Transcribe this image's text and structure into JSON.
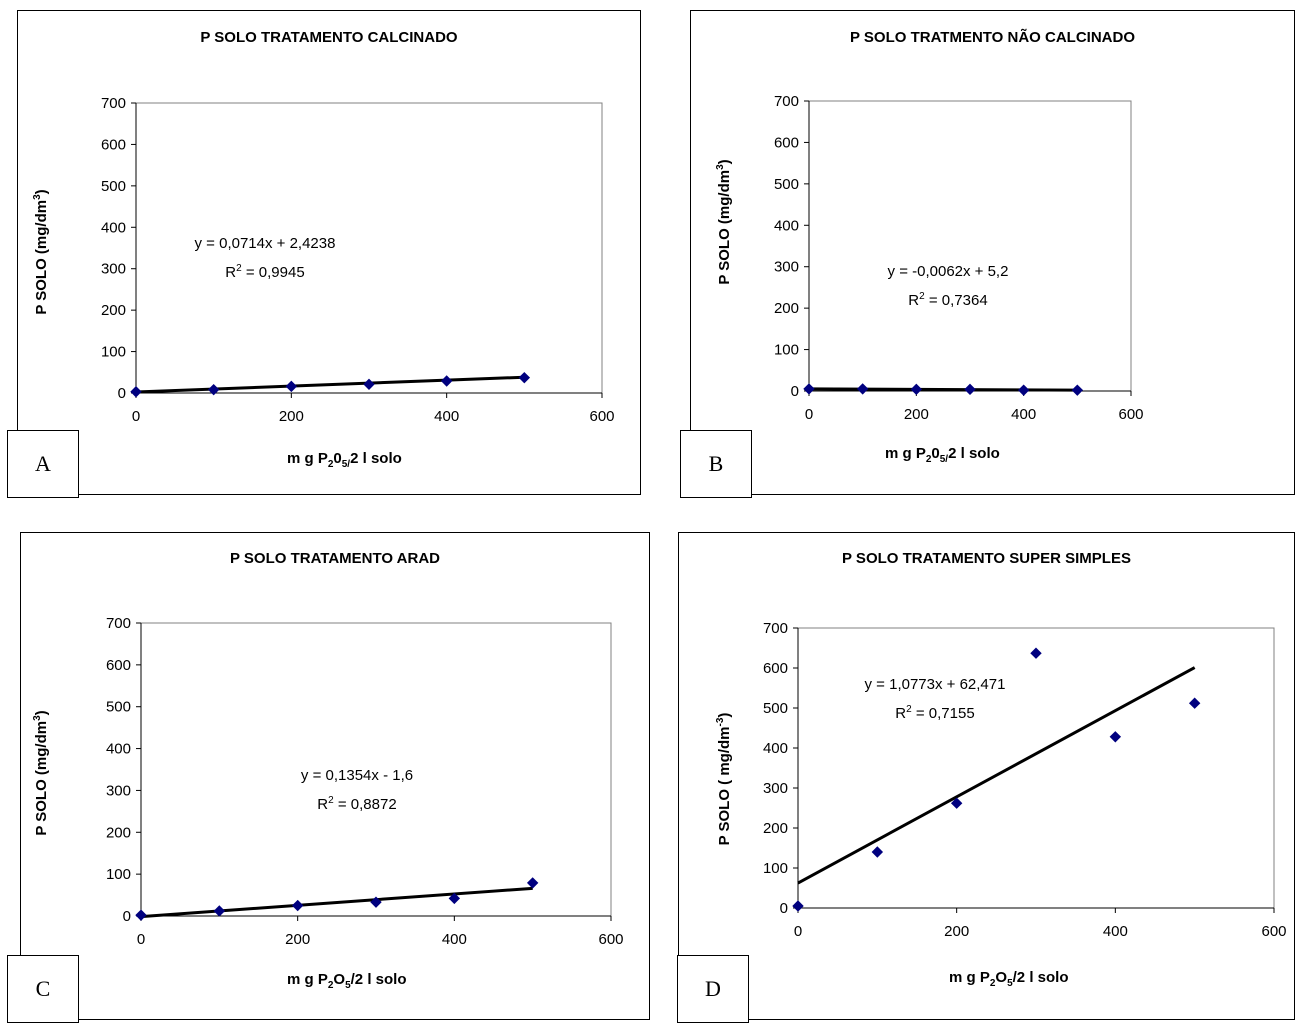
{
  "chart_data": [
    {
      "type": "scatter",
      "panel_letter": "A",
      "title": "P SOLO TRATAMENTO CALCINADO",
      "xlabel": "mg P2O5/2 l solo",
      "ylabel": "P SOLO (mg/dm3)",
      "xlim": [
        0,
        600
      ],
      "ylim": [
        0,
        700
      ],
      "xticks": [
        "0",
        "200",
        "400",
        "600"
      ],
      "yticks": [
        "0",
        "100",
        "200",
        "300",
        "400",
        "500",
        "600",
        "700"
      ],
      "x": [
        0,
        100,
        200,
        300,
        400,
        500
      ],
      "y": [
        3,
        8,
        16,
        21,
        29,
        37
      ],
      "trendline": {
        "slope": 0.0714,
        "intercept": 2.4238
      },
      "equation": "y = 0,0714x + 2,4238",
      "r2": "R2 = 0,9945",
      "marker_color": "#00007f",
      "line_color": "#000000"
    },
    {
      "type": "scatter",
      "panel_letter": "B",
      "title": "P SOLO TRATMENTO NÃO CALCINADO",
      "xlabel": "mg P2O5/2 l solo",
      "ylabel": "P SOLO (mg/dm3)",
      "xlim": [
        0,
        600
      ],
      "ylim": [
        0,
        700
      ],
      "xticks": [
        "0",
        "200",
        "400",
        "600"
      ],
      "yticks": [
        "0",
        "100",
        "200",
        "300",
        "400",
        "500",
        "600",
        "700"
      ],
      "x": [
        0,
        100,
        200,
        300,
        400,
        500
      ],
      "y": [
        5,
        5,
        4,
        4,
        2,
        2
      ],
      "trendline": {
        "slope": -0.0062,
        "intercept": 5.2
      },
      "equation": "y = -0,0062x + 5,2",
      "r2": "R2 = 0,7364",
      "marker_color": "#00007f",
      "line_color": "#000000"
    },
    {
      "type": "scatter",
      "panel_letter": "C",
      "title": "P SOLO TRATAMENTO ARAD",
      "xlabel": "mg P2O5/2 l solo",
      "ylabel": "P SOLO (mg/dm3)",
      "xlim": [
        0,
        600
      ],
      "ylim": [
        0,
        700
      ],
      "xticks": [
        "0",
        "200",
        "400",
        "600"
      ],
      "yticks": [
        "0",
        "100",
        "200",
        "300",
        "400",
        "500",
        "600",
        "700"
      ],
      "x": [
        0,
        100,
        200,
        300,
        400,
        500
      ],
      "y": [
        2,
        12,
        25,
        33,
        42,
        79
      ],
      "trendline": {
        "slope": 0.1354,
        "intercept": -1.6
      },
      "equation": "y = 0,1354x - 1,6",
      "r2": "R2 = 0,8872",
      "marker_color": "#00007f",
      "line_color": "#000000"
    },
    {
      "type": "scatter",
      "panel_letter": "D",
      "title": "P SOLO TRATAMENTO SUPER SIMPLES",
      "xlabel": "mg P2O5/2 l solo",
      "ylabel": "P SOLO ( mg/dm-3)",
      "xlim": [
        0,
        600
      ],
      "ylim": [
        0,
        700
      ],
      "xticks": [
        "0",
        "200",
        "400",
        "600"
      ],
      "yticks": [
        "0",
        "100",
        "200",
        "300",
        "400",
        "500",
        "600",
        "700"
      ],
      "x": [
        0,
        100,
        200,
        300,
        400,
        500
      ],
      "y": [
        5,
        140,
        262,
        637,
        428,
        512
      ],
      "trendline": {
        "slope": 1.0773,
        "intercept": 62.471
      },
      "equation": "y = 1,0773x + 62,471",
      "r2": "R2 = 0,7155",
      "marker_color": "#00007f",
      "line_color": "#000000"
    }
  ]
}
